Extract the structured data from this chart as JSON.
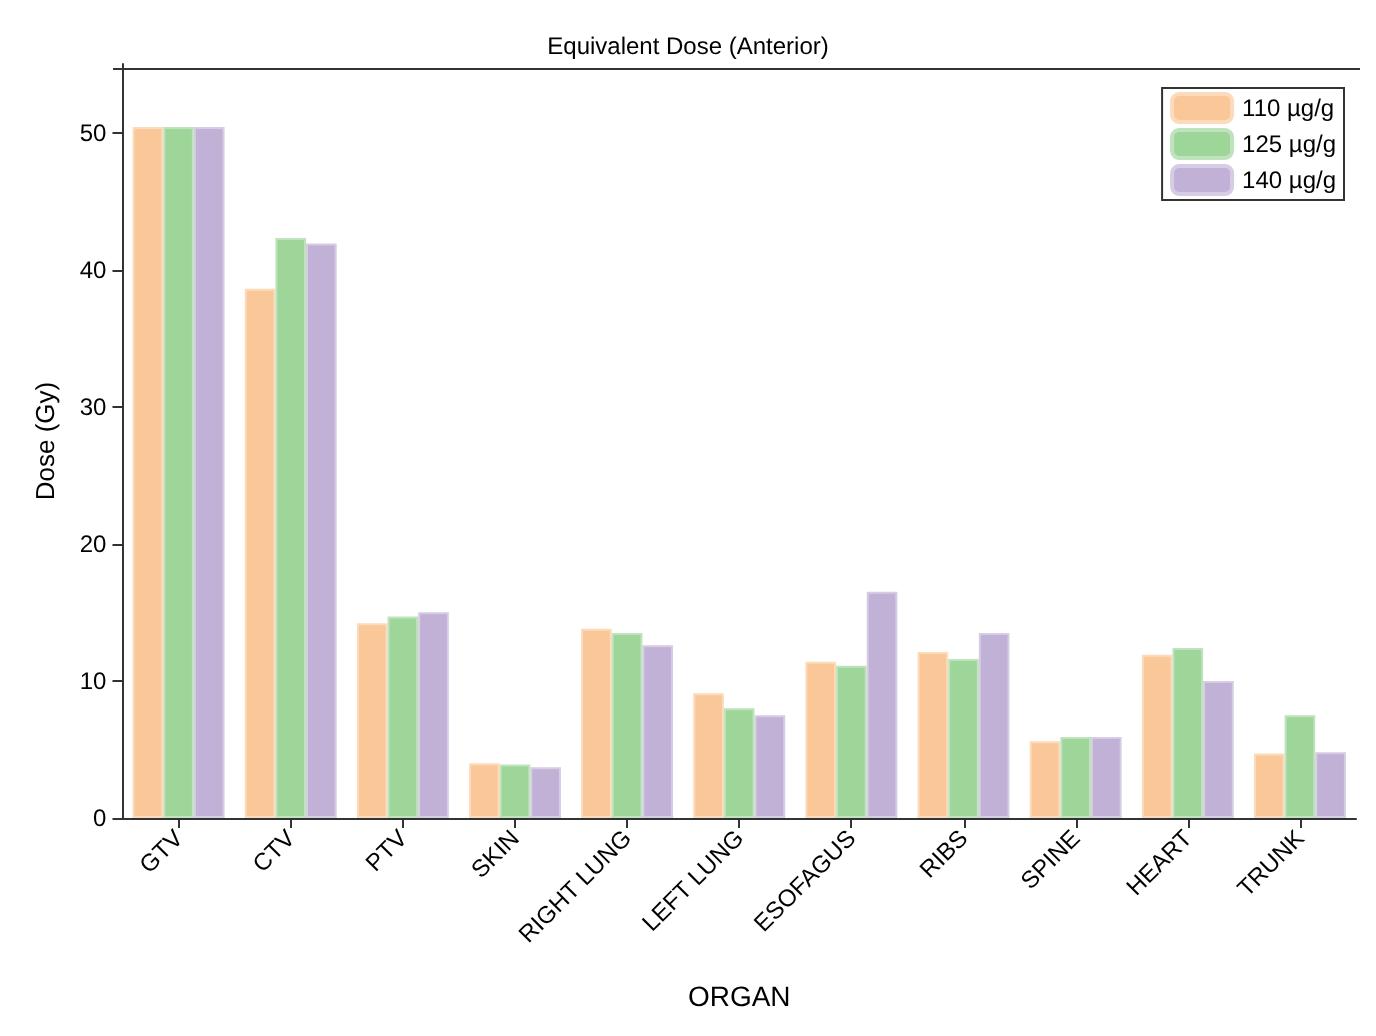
{
  "chart_data": {
    "type": "bar",
    "title": "Equivalent Dose (Anterior)",
    "xlabel": "ORGAN",
    "ylabel": "Dose (Gy)",
    "categories": [
      "GTV",
      "CTV",
      "PTV",
      "SKIN",
      "RIGHT LUNG",
      "LEFT LUNG",
      "ESOFAGUS",
      "RIBS",
      "SPINE",
      "HEART",
      "TRUNK"
    ],
    "series": [
      {
        "name": "110 µg/g",
        "color": "#fac898",
        "values": [
          50.4,
          38.6,
          14.2,
          4.0,
          13.8,
          9.1,
          11.4,
          12.1,
          5.6,
          11.9,
          4.7
        ]
      },
      {
        "name": "125 µg/g",
        "color": "#9ed69a",
        "values": [
          50.4,
          42.3,
          14.7,
          3.9,
          13.5,
          8.0,
          11.1,
          11.6,
          5.9,
          12.4,
          7.5
        ]
      },
      {
        "name": "140 µg/g",
        "color": "#c1b1d6",
        "values": [
          50.4,
          41.9,
          15.0,
          3.7,
          12.6,
          7.5,
          16.5,
          13.5,
          5.9,
          10.0,
          4.8
        ]
      }
    ],
    "ylim": [
      0,
      55
    ],
    "yticks": [
      0,
      10,
      20,
      30,
      40,
      50
    ],
    "grid": false,
    "legend": "top right"
  }
}
